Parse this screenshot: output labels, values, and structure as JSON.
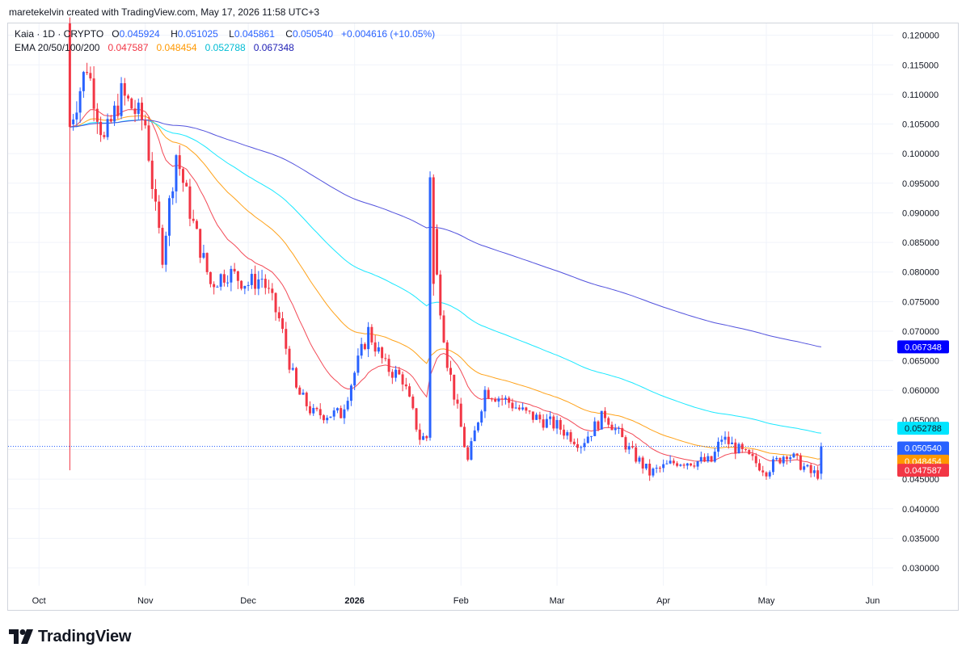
{
  "header": {
    "attribution": "maretekelvin created with TradingView.com, May 17, 2026 11:58 UTC+3"
  },
  "legend": {
    "symbol": "Kaia · 1D · CRYPTO",
    "o_label": "O",
    "o_value": "0.045924",
    "h_label": "H",
    "h_value": "0.051025",
    "l_label": "L",
    "l_value": "0.045861",
    "c_label": "C",
    "c_value": "0.050540",
    "change": "+0.004616 (+10.05%)",
    "ema_label": "EMA 20/50/100/200",
    "ema20": "0.047587",
    "ema50": "0.048454",
    "ema100": "0.052788",
    "ema200": "0.067348"
  },
  "price_labels": {
    "ema100": "0.052788",
    "close": "0.050540",
    "countdown": "15:01:23",
    "ema50": "0.048454",
    "ema20": "0.047587"
  },
  "footer": {
    "brand": "TradingView"
  },
  "colors": {
    "up": "#2962ff",
    "down": "#f23645",
    "ema20": "#f23645",
    "ema50": "#ff9800",
    "ema100": "#00e5ff",
    "ema200": "#3f3fd9",
    "grid": "#f0f3fa",
    "text": "#131722"
  },
  "chart_data": {
    "type": "candlestick",
    "y_ticks": [
      "0.120000",
      "0.115000",
      "0.110000",
      "0.105000",
      "0.100000",
      "0.095000",
      "0.090000",
      "0.085000",
      "0.080000",
      "0.075000",
      "0.070000",
      "0.065000",
      "0.060000",
      "0.055000",
      "0.050000",
      "0.045000",
      "0.040000",
      "0.035000",
      "0.030000"
    ],
    "x_ticks": [
      {
        "date": "2025-10-01",
        "label": "Oct",
        "bold": false
      },
      {
        "date": "2025-11-01",
        "label": "Nov",
        "bold": false
      },
      {
        "date": "2025-12-01",
        "label": "Dec",
        "bold": false
      },
      {
        "date": "2026-01-01",
        "label": "2026",
        "bold": true
      },
      {
        "date": "2026-02-01",
        "label": "Feb",
        "bold": false
      },
      {
        "date": "2026-03-01",
        "label": "Mar",
        "bold": false
      },
      {
        "date": "2026-04-01",
        "label": "Apr",
        "bold": false
      },
      {
        "date": "2026-05-01",
        "label": "May",
        "bold": false
      },
      {
        "date": "2026-06-01",
        "label": "Jun",
        "bold": false
      }
    ],
    "y_range": [
      0.027,
      0.122
    ],
    "x_range": [
      "2025-09-22",
      "2026-06-07"
    ],
    "key_points": [
      {
        "date": "2025-10-10",
        "close": 0.105
      },
      {
        "date": "2025-10-15",
        "close": 0.115
      },
      {
        "date": "2025-10-20",
        "close": 0.102
      },
      {
        "date": "2025-10-25",
        "close": 0.11
      },
      {
        "date": "2025-11-01",
        "close": 0.105
      },
      {
        "date": "2025-11-04",
        "close": 0.09
      },
      {
        "date": "2025-11-06",
        "close": 0.083
      },
      {
        "date": "2025-11-10",
        "close": 0.1
      },
      {
        "date": "2025-11-15",
        "close": 0.088
      },
      {
        "date": "2025-11-20",
        "close": 0.078
      },
      {
        "date": "2025-11-25",
        "close": 0.08
      },
      {
        "date": "2025-12-01",
        "close": 0.078
      },
      {
        "date": "2025-12-05",
        "close": 0.079
      },
      {
        "date": "2025-12-10",
        "close": 0.072
      },
      {
        "date": "2025-12-15",
        "close": 0.06
      },
      {
        "date": "2025-12-20",
        "close": 0.056
      },
      {
        "date": "2025-12-28",
        "close": 0.056
      },
      {
        "date": "2026-01-05",
        "close": 0.07
      },
      {
        "date": "2026-01-10",
        "close": 0.064
      },
      {
        "date": "2026-01-15",
        "close": 0.062
      },
      {
        "date": "2026-01-20",
        "close": 0.052
      },
      {
        "date": "2026-01-22",
        "close": 0.052
      },
      {
        "date": "2026-01-23",
        "close": 0.095
      },
      {
        "date": "2026-01-25",
        "close": 0.079
      },
      {
        "date": "2026-01-28",
        "close": 0.065
      },
      {
        "date": "2026-02-03",
        "close": 0.048
      },
      {
        "date": "2026-02-08",
        "close": 0.06
      },
      {
        "date": "2026-02-15",
        "close": 0.058
      },
      {
        "date": "2026-02-20",
        "close": 0.056
      },
      {
        "date": "2026-03-01",
        "close": 0.054
      },
      {
        "date": "2026-03-08",
        "close": 0.051
      },
      {
        "date": "2026-03-15",
        "close": 0.056
      },
      {
        "date": "2026-03-22",
        "close": 0.05
      },
      {
        "date": "2026-03-28",
        "close": 0.046
      },
      {
        "date": "2026-04-05",
        "close": 0.048
      },
      {
        "date": "2026-04-15",
        "close": 0.048
      },
      {
        "date": "2026-04-18",
        "close": 0.052
      },
      {
        "date": "2026-04-25",
        "close": 0.049
      },
      {
        "date": "2026-05-01",
        "close": 0.0465
      },
      {
        "date": "2026-05-07",
        "close": 0.0495
      },
      {
        "date": "2026-05-14",
        "close": 0.046
      },
      {
        "date": "2026-05-16",
        "close": 0.0459
      },
      {
        "date": "2026-05-17",
        "close": 0.0505
      }
    ],
    "ema_end_values": {
      "ema20": 0.047587,
      "ema50": 0.048454,
      "ema100": 0.052788,
      "ema200": 0.067348
    }
  }
}
